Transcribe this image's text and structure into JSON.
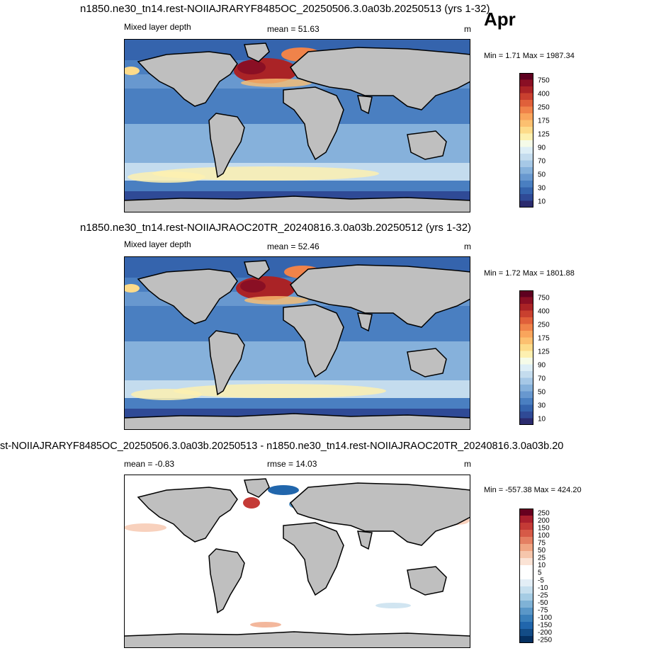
{
  "month_label": "Apr",
  "panels": [
    {
      "title": "n1850.ne30_tn14.rest-NOIIAJRARYF8485OC_20250506.3.0a03b.20250513 (yrs 1-32)",
      "left_label": "Mixed layer depth",
      "center_label": "mean =  51.63",
      "units": "m",
      "minmax": "Min =   1.71 Max = 1987.34"
    },
    {
      "title": "n1850.ne30_tn14.rest-NOIIAJRAOC20TR_20240816.3.0a03b.20250512 (yrs 1-32)",
      "left_label": "Mixed layer depth",
      "center_label": "mean =  52.46",
      "units": "m",
      "minmax": "Min =   1.72 Max = 1801.88"
    },
    {
      "title": "st-NOIIAJRARYF8485OC_20250506.3.0a03b.20250513 - n1850.ne30_tn14.rest-NOIIAJRAOC20TR_20240816.3.0a03b.20",
      "left_label": "mean =  -0.83",
      "center_label": "rmse =  14.03",
      "units": "m",
      "minmax": "Min = -557.38 Max = 424.20"
    }
  ],
  "chart_data": [
    {
      "type": "heatmap",
      "title": "n1850.ne30_tn14.rest-NOIIAJRARYF8485OC_20250506.3.0a03b.20250513 (yrs 1-32)",
      "variable": "Mixed layer depth",
      "units": "m",
      "mean": 51.63,
      "min": 1.71,
      "max": 1987.34,
      "colorbar_levels": [
        10,
        20,
        30,
        40,
        50,
        60,
        70,
        80,
        90,
        100,
        125,
        150,
        175,
        200,
        250,
        300,
        400,
        500,
        750
      ],
      "colorbar_labels": [
        "750",
        "400",
        "250",
        "175",
        "125",
        "90",
        "70",
        "50",
        "30",
        "10"
      ],
      "colorbar_colors": [
        "#2b2b6e",
        "#2f4a96",
        "#3564ad",
        "#4a7fc1",
        "#6898cf",
        "#86b1db",
        "#a6c8e6",
        "#c4dcee",
        "#ddeef6",
        "#f5fbe8",
        "#fdf0b0",
        "#fddb8a",
        "#fcc070",
        "#f9a55c",
        "#f0834a",
        "#e0603a",
        "#c9402f",
        "#aa2326",
        "#8a0f24",
        "#5e0020"
      ]
    },
    {
      "type": "heatmap",
      "title": "n1850.ne30_tn14.rest-NOIIAJRAOC20TR_20240816.3.0a03b.20250512 (yrs 1-32)",
      "variable": "Mixed layer depth",
      "units": "m",
      "mean": 52.46,
      "min": 1.72,
      "max": 1801.88,
      "colorbar_levels": [
        10,
        20,
        30,
        40,
        50,
        60,
        70,
        80,
        90,
        100,
        125,
        150,
        175,
        200,
        250,
        300,
        400,
        500,
        750
      ],
      "colorbar_labels": [
        "750",
        "400",
        "250",
        "175",
        "125",
        "90",
        "70",
        "50",
        "30",
        "10"
      ],
      "colorbar_colors": [
        "#2b2b6e",
        "#2f4a96",
        "#3564ad",
        "#4a7fc1",
        "#6898cf",
        "#86b1db",
        "#a6c8e6",
        "#c4dcee",
        "#ddeef6",
        "#f5fbe8",
        "#fdf0b0",
        "#fddb8a",
        "#fcc070",
        "#f9a55c",
        "#f0834a",
        "#e0603a",
        "#c9402f",
        "#aa2326",
        "#8a0f24",
        "#5e0020"
      ]
    },
    {
      "type": "heatmap",
      "title": "st-NOIIAJRARYF8485OC_20250506.3.0a03b.20250513 - n1850.ne30_tn14.rest-NOIIAJRAOC20TR_20240816.3.0a03b.20",
      "units": "m",
      "mean": -0.83,
      "rmse": 14.03,
      "min": -557.38,
      "max": 424.2,
      "colorbar_labels": [
        "250",
        "200",
        "150",
        "100",
        "75",
        "50",
        "25",
        "10",
        "5",
        "-5",
        "-10",
        "-25",
        "-50",
        "-75",
        "-100",
        "-150",
        "-200",
        "-250"
      ],
      "colorbar_colors": [
        "#053061",
        "#134c87",
        "#2166ac",
        "#3a7fba",
        "#5a97c8",
        "#7fb2d6",
        "#a5cce4",
        "#c6dfee",
        "#e3eef6",
        "#ffffff",
        "#ffffff",
        "#fbe3d5",
        "#f6c6ac",
        "#f0a583",
        "#e47f62",
        "#d65a47",
        "#c43a36",
        "#aa1f2d",
        "#67001f"
      ]
    }
  ]
}
